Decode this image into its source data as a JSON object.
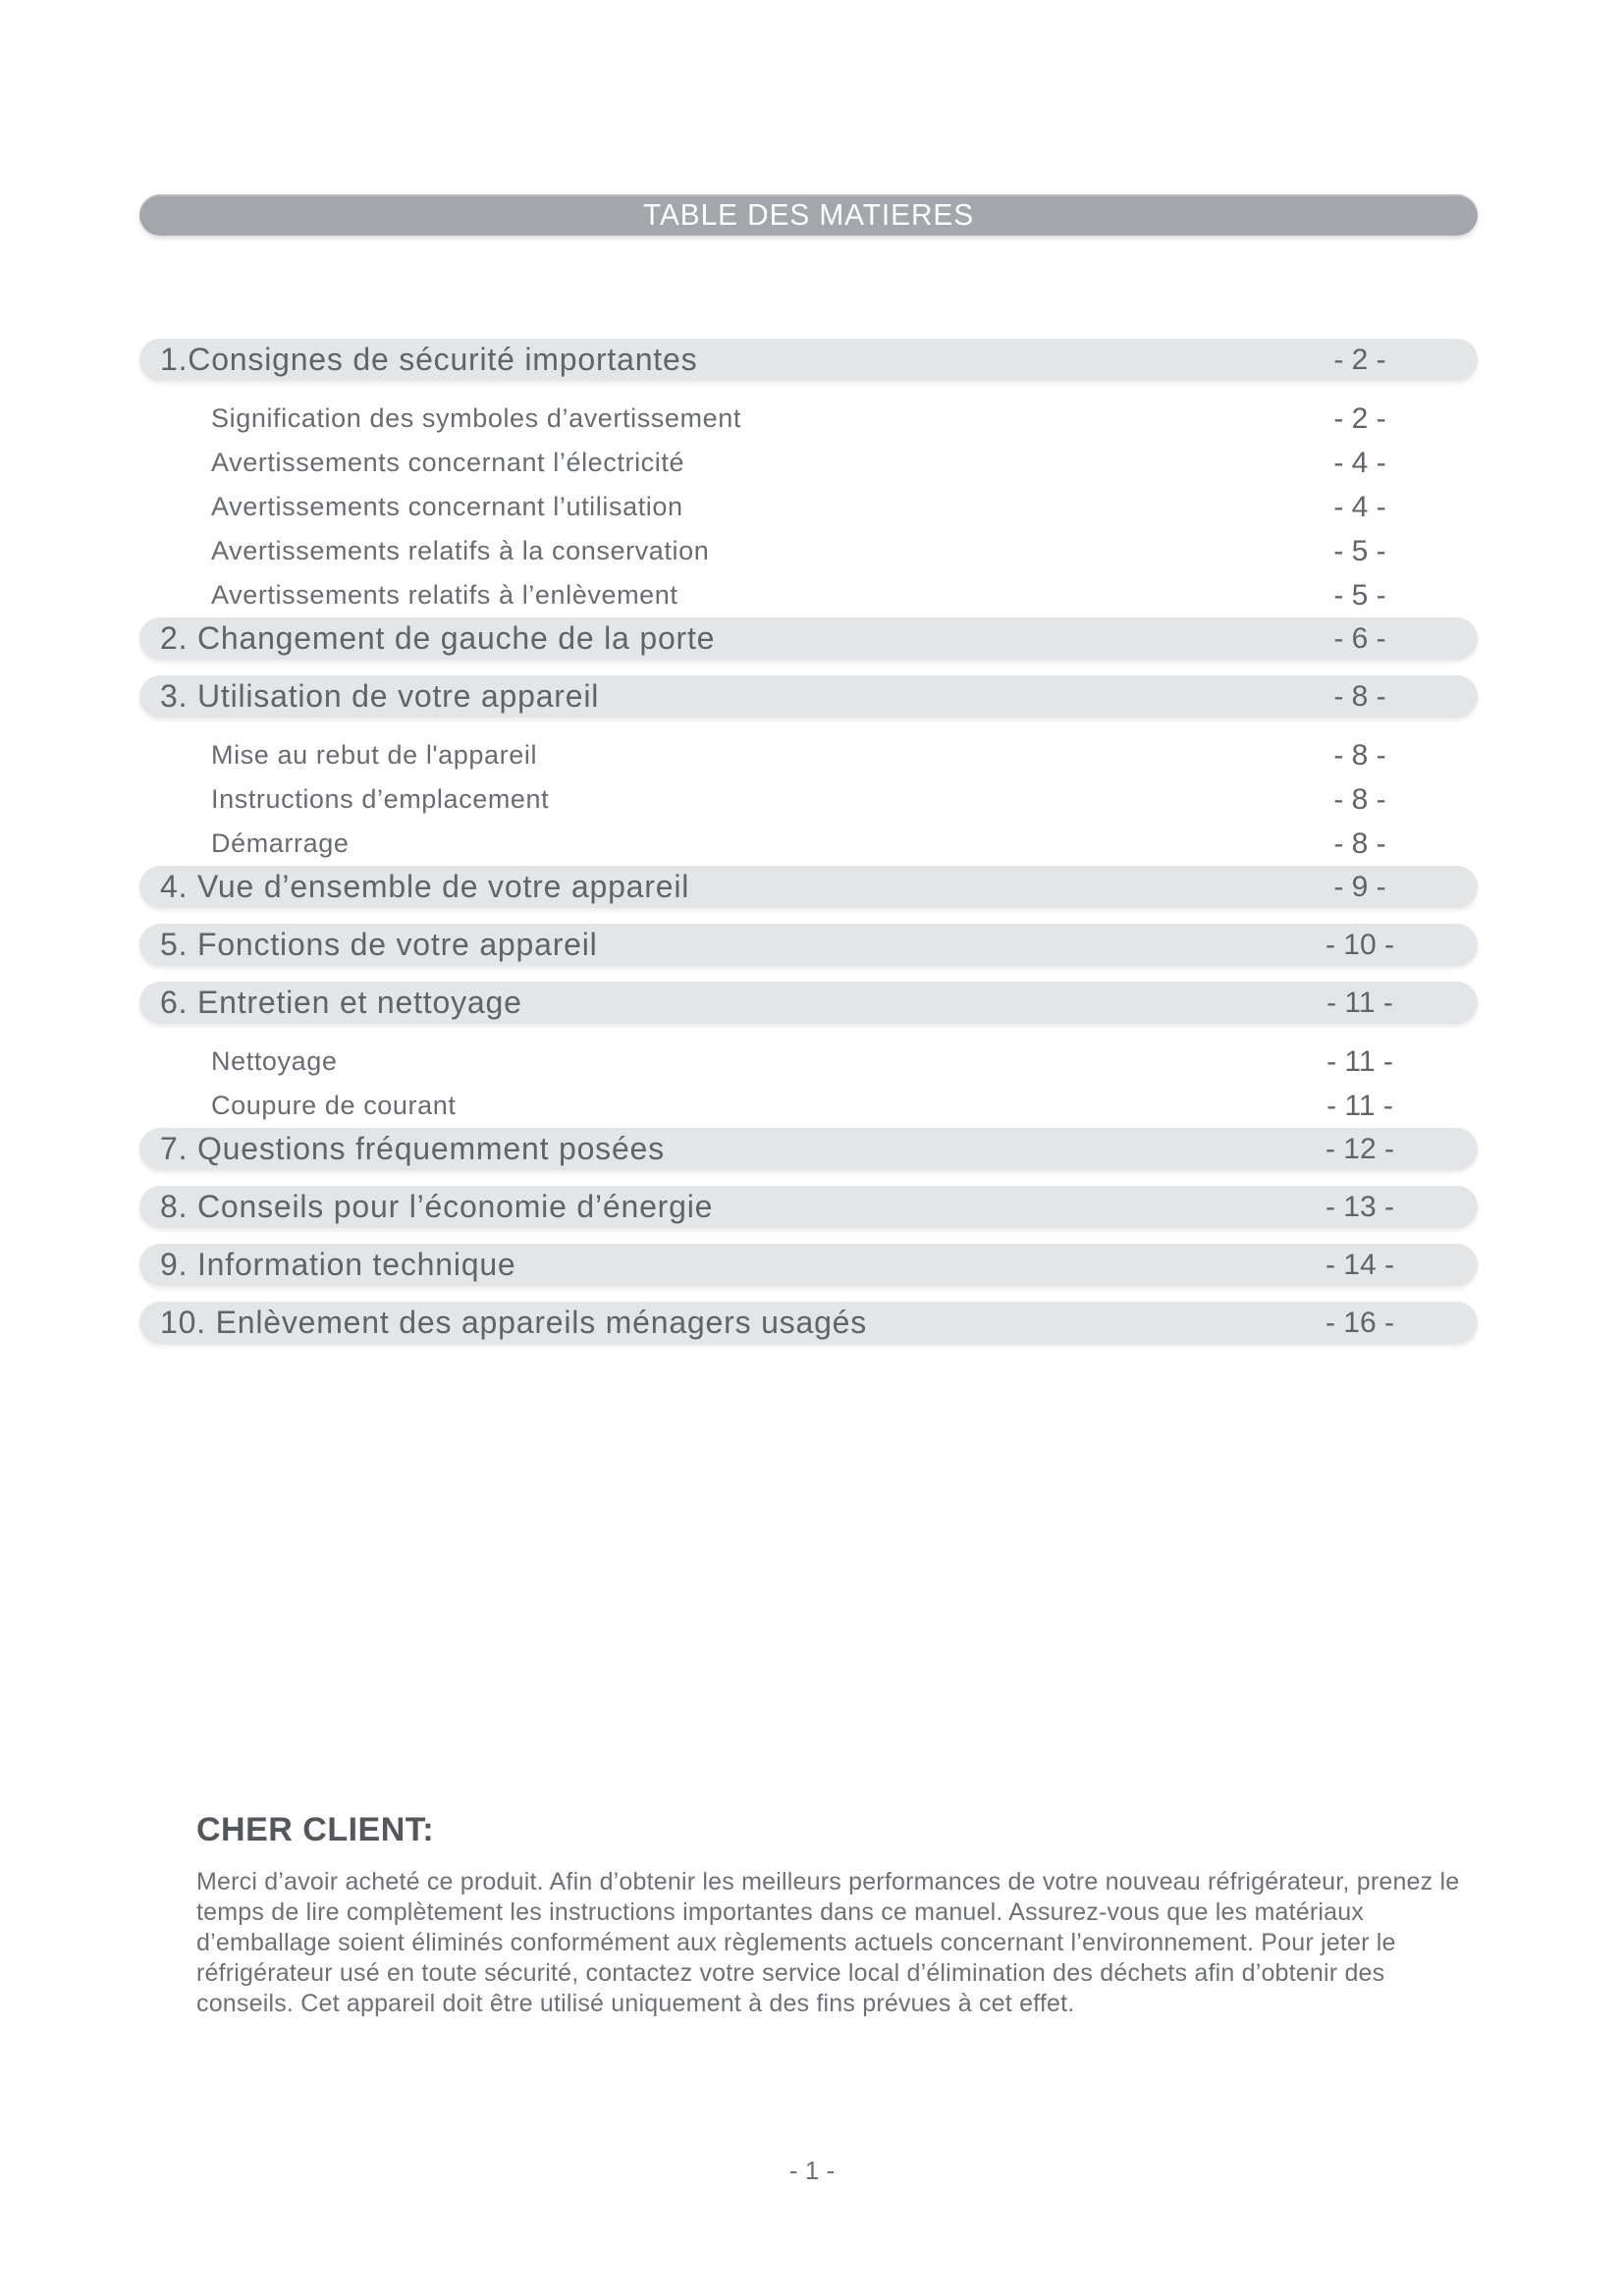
{
  "page": {
    "title": "TABLE DES MATIERES",
    "footer_page_number": "- 1 -"
  },
  "toc": {
    "entries": [
      {
        "type": "section",
        "label": "1.Consignes de sécurité importantes",
        "page": "- 2 -"
      },
      {
        "type": "sub",
        "label": "Signification des symboles d’avertissement",
        "page": "- 2 -"
      },
      {
        "type": "sub",
        "label": "Avertissements concernant l’électricité",
        "page": "- 4 -"
      },
      {
        "type": "sub",
        "label": "Avertissements concernant l’utilisation",
        "page": "- 4 -"
      },
      {
        "type": "sub",
        "label": "Avertissements relatifs à la conservation",
        "page": "- 5 -"
      },
      {
        "type": "sub",
        "label": "Avertissements relatifs à l’enlèvement",
        "page": "- 5 -"
      },
      {
        "type": "section",
        "label": "2. Changement de gauche de la porte",
        "page": "- 6 -"
      },
      {
        "type": "section",
        "label": "3. Utilisation de votre appareil",
        "page": "- 8 -"
      },
      {
        "type": "sub",
        "label": "Mise au rebut de l'appareil",
        "page": "- 8 -"
      },
      {
        "type": "sub",
        "label": "Instructions d’emplacement",
        "page": "- 8 -"
      },
      {
        "type": "sub",
        "label": "Démarrage",
        "page": "- 8 -"
      },
      {
        "type": "section",
        "label": "4. Vue d’ensemble de votre appareil",
        "page": "- 9 -"
      },
      {
        "type": "section",
        "label": "5. Fonctions de votre appareil",
        "page": "- 10 -"
      },
      {
        "type": "section",
        "label": "6. Entretien et nettoyage",
        "page": "- 11 -"
      },
      {
        "type": "sub",
        "label": "Nettoyage",
        "page": "- 11 -"
      },
      {
        "type": "sub",
        "label": "Coupure de courant",
        "page": "- 11 -"
      },
      {
        "type": "section",
        "label": "7. Questions fréquemment posées",
        "page": "- 12 -"
      },
      {
        "type": "section",
        "label": "8. Conseils pour l’économie d’énergie",
        "page": "- 13 -"
      },
      {
        "type": "section",
        "label": "9. Information technique",
        "page": "- 14 -"
      },
      {
        "type": "section",
        "label": "10. Enlèvement des appareils ménagers usagés",
        "page": "- 16 -"
      }
    ]
  },
  "client_note": {
    "heading": "CHER CLIENT:",
    "body": "Merci d’avoir acheté ce produit. Afin d’obtenir les meilleurs performances de votre nouveau réfrigérateur, prenez le temps de lire complètement les instructions importantes dans ce manuel. Assurez-vous que les matériaux d’emballage soient éliminés conformément aux règlements actuels concernant l’environnement. Pour jeter le réfrigérateur usé en toute sécurité, contactez votre service local d’élimination des déchets afin d’obtenir des conseils. Cet appareil doit être utilisé uniquement à des fins prévues à cet effet."
  },
  "colors": {
    "title_bar_bg": "#a3a7ab",
    "title_text": "#ffffff",
    "section_bar_bg": "#e4e5e6",
    "heading_text": "#60646a",
    "sub_text": "#686c71",
    "strong_text": "#53575c",
    "body_text": "#6d7175"
  }
}
